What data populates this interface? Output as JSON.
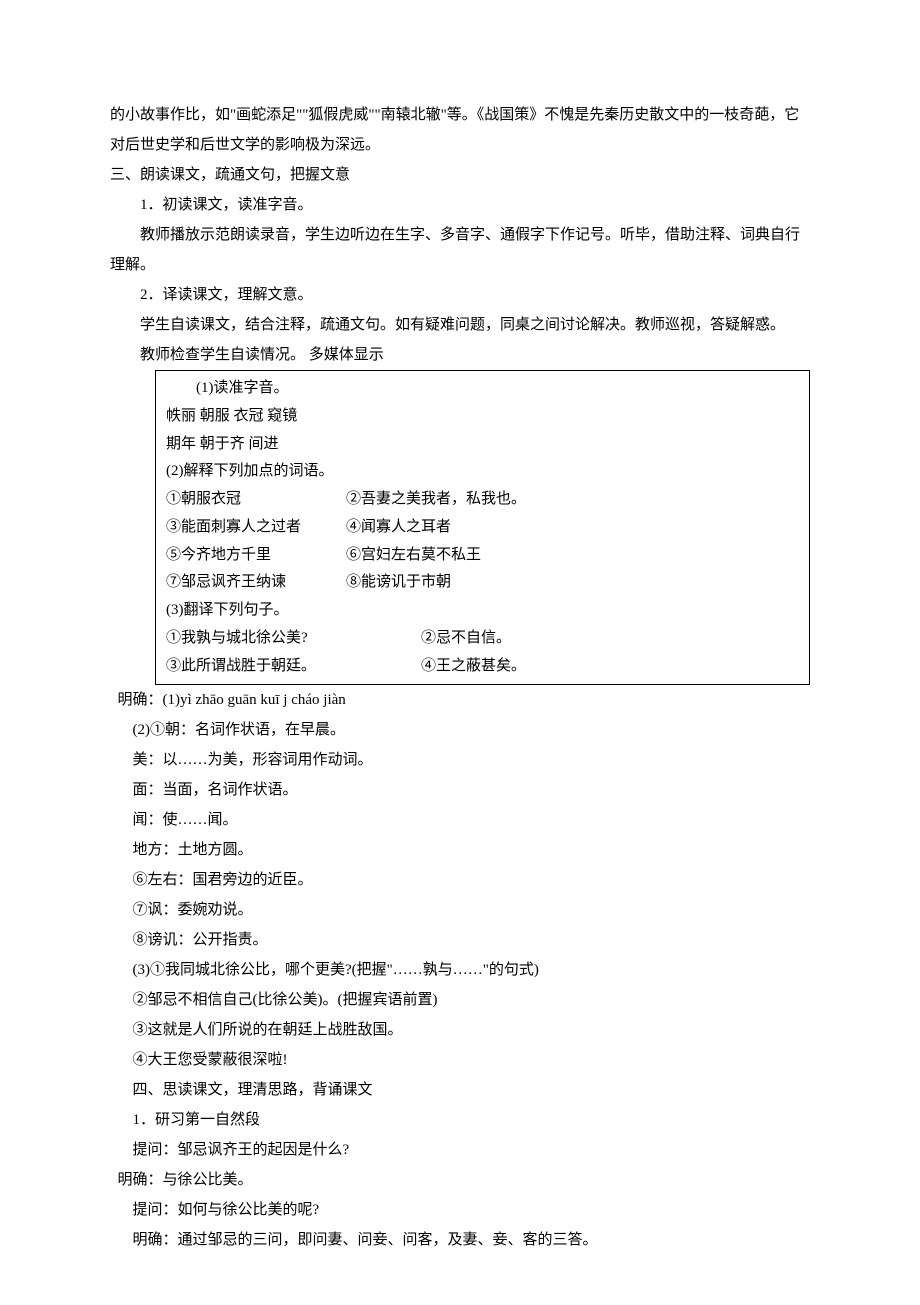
{
  "intro_para1": "的小故事作比，如\"画蛇添足\"\"狐假虎威\"\"南辕北辙\"等。《战国策》不愧是先秦历史散文中的一枝奇葩，它对后世史学和后世文学的影响极为深远。",
  "section3_title": "三、朗读课文，疏通文句，把握文意",
  "s3_item1": "1．初读课文，读准字音。",
  "s3_item1_body": "教师播放示范朗读录音，学生边听边在生字、多音字、通假字下作记号。听毕，借助注释、词典自行理解。",
  "s3_item2": "2．译读课文，理解文意。",
  "s3_item2_body": "学生自读课文，结合注释，疏通文句。如有疑难问题，同桌之间讨论解决。教师巡视，答疑解惑。",
  "s3_check": "教师检查学生自读情况。      多媒体显示",
  "box": {
    "r1": "(1)读准字音。",
    "r2": "帙丽      朝服        衣冠      窥镜",
    "r3": "期年      朝于齐      间进",
    "r4": "(2)解释下列加点的词语。",
    "r5a": "①朝服衣冠",
    "r5b": "②吾妻之美我者，私我也。",
    "r6a": "③能面刺寡人之过者",
    "r6b": "④闻寡人之耳者",
    "r7a": "⑤今齐地方千里",
    "r7b": "⑥宫妇左右莫不私王",
    "r8a": "⑦邹忌讽齐王纳谏",
    "r8b": "⑧能谤讥于市朝",
    "r9": "(3)翻译下列句子。",
    "r10a": "①我孰与城北徐公美?",
    "r10b": "②忌不自信。",
    "r11a": "③此所谓战胜于朝廷。",
    "r11b": "④王之蔽甚矣。"
  },
  "ans_header": "明确：(1)yì  zhāo  guān  kuī   j  cháo  jiàn",
  "ans2_1": "(2)①朝：名词作状语，在早晨。",
  "ans_mei": "美：以……为美，形容词用作动词。",
  "ans_mian": "面：当面，名词作状语。",
  "ans_wen": "闻：使……闻。",
  "ans_difang": "地方：土地方圆。",
  "ans_6": "⑥左右：国君旁边的近臣。",
  "ans_7": "⑦讽：委婉劝说。",
  "ans_8": "⑧谤讥：公开指责。",
  "ans3_1": "(3)①我同城北徐公比，哪个更美?(把握\"……孰与……\"的句式)",
  "ans3_2": "②邹忌不相信自己(比徐公美)。(把握宾语前置)",
  "ans3_3": "③这就是人们所说的在朝廷上战胜敌国。",
  "ans3_4": "④大王您受蒙蔽很深啦!",
  "section4_title": "四、思读课文，理清思路，背诵课文",
  "s4_item1": "1．研习第一自然段",
  "s4_q1": "提问：邹忌讽齐王的起因是什么?",
  "s4_a1": "明确：与徐公比美。",
  "s4_q2": "提问：如何与徐公比美的呢?",
  "s4_a2": "明确：通过邹忌的三问，即问妻、问妾、问客，及妻、妾、客的三答。"
}
